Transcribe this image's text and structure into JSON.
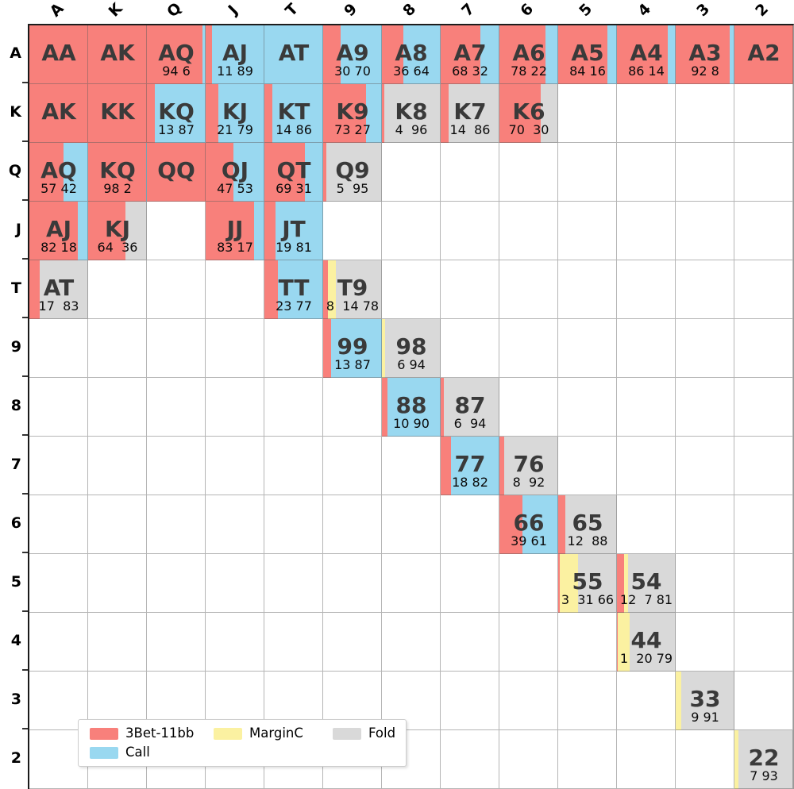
{
  "figure": {
    "kind": "poker-preflop-range-matrix"
  },
  "colors": {
    "threebet": "#f8807b",
    "call": "#99d8f0",
    "margin": "#fbf1a1",
    "fold": "#d9d9d9",
    "empty_cell": "#ffffff",
    "hand_label": "#3a3a3a",
    "grid_line": "#8a8a8a"
  },
  "legend": {
    "items": [
      {
        "key": "threebet",
        "label": "3Bet-11bb"
      },
      {
        "key": "call",
        "label": "Call"
      },
      {
        "key": "margin",
        "label": "MarginC"
      },
      {
        "key": "fold",
        "label": "Fold"
      }
    ]
  },
  "chart_data": {
    "type": "heatmap",
    "title": "",
    "xlabel": "",
    "ylabel": "",
    "row_labels": [
      "A",
      "K",
      "Q",
      "J",
      "T",
      "9",
      "8",
      "7",
      "6",
      "5",
      "4",
      "3",
      "2"
    ],
    "col_labels": [
      "A",
      "K",
      "Q",
      "J",
      "T",
      "9",
      "8",
      "7",
      "6",
      "5",
      "4",
      "3",
      "2"
    ],
    "actions_order": [
      "threebet",
      "call",
      "margin",
      "fold"
    ],
    "cells": [
      {
        "r": 0,
        "c": 0,
        "hand": "AA",
        "nums": "",
        "segs": [
          [
            "threebet",
            100
          ]
        ]
      },
      {
        "r": 0,
        "c": 1,
        "hand": "AK",
        "nums": "",
        "segs": [
          [
            "threebet",
            100
          ]
        ]
      },
      {
        "r": 0,
        "c": 2,
        "hand": "AQ",
        "nums": "94 6",
        "segs": [
          [
            "threebet",
            94
          ],
          [
            "call",
            6
          ]
        ]
      },
      {
        "r": 0,
        "c": 3,
        "hand": "AJ",
        "nums": "11 89",
        "segs": [
          [
            "threebet",
            11
          ],
          [
            "call",
            89
          ]
        ]
      },
      {
        "r": 0,
        "c": 4,
        "hand": "AT",
        "nums": "",
        "segs": [
          [
            "call",
            100
          ]
        ]
      },
      {
        "r": 0,
        "c": 5,
        "hand": "A9",
        "nums": "30 70",
        "segs": [
          [
            "threebet",
            30
          ],
          [
            "call",
            70
          ]
        ]
      },
      {
        "r": 0,
        "c": 6,
        "hand": "A8",
        "nums": "36 64",
        "segs": [
          [
            "threebet",
            36
          ],
          [
            "call",
            64
          ]
        ]
      },
      {
        "r": 0,
        "c": 7,
        "hand": "A7",
        "nums": "68 32",
        "segs": [
          [
            "threebet",
            68
          ],
          [
            "call",
            32
          ]
        ]
      },
      {
        "r": 0,
        "c": 8,
        "hand": "A6",
        "nums": "78 22",
        "segs": [
          [
            "threebet",
            78
          ],
          [
            "call",
            22
          ]
        ]
      },
      {
        "r": 0,
        "c": 9,
        "hand": "A5",
        "nums": "84 16",
        "segs": [
          [
            "threebet",
            84
          ],
          [
            "call",
            16
          ]
        ]
      },
      {
        "r": 0,
        "c": 10,
        "hand": "A4",
        "nums": "86 14",
        "segs": [
          [
            "threebet",
            86
          ],
          [
            "call",
            14
          ]
        ]
      },
      {
        "r": 0,
        "c": 11,
        "hand": "A3",
        "nums": "92 8",
        "segs": [
          [
            "threebet",
            92
          ],
          [
            "call",
            8
          ]
        ]
      },
      {
        "r": 0,
        "c": 12,
        "hand": "A2",
        "nums": "",
        "segs": [
          [
            "threebet",
            100
          ]
        ]
      },
      {
        "r": 1,
        "c": 0,
        "hand": "AK",
        "nums": "",
        "segs": [
          [
            "threebet",
            100
          ]
        ]
      },
      {
        "r": 1,
        "c": 1,
        "hand": "KK",
        "nums": "",
        "segs": [
          [
            "threebet",
            100
          ]
        ]
      },
      {
        "r": 1,
        "c": 2,
        "hand": "KQ",
        "nums": "13 87",
        "segs": [
          [
            "threebet",
            13
          ],
          [
            "call",
            87
          ]
        ]
      },
      {
        "r": 1,
        "c": 3,
        "hand": "KJ",
        "nums": "21 79",
        "segs": [
          [
            "threebet",
            21
          ],
          [
            "call",
            79
          ]
        ]
      },
      {
        "r": 1,
        "c": 4,
        "hand": "KT",
        "nums": "14 86",
        "segs": [
          [
            "threebet",
            14
          ],
          [
            "call",
            86
          ]
        ]
      },
      {
        "r": 1,
        "c": 5,
        "hand": "K9",
        "nums": "73 27",
        "segs": [
          [
            "threebet",
            73
          ],
          [
            "call",
            27
          ]
        ]
      },
      {
        "r": 1,
        "c": 6,
        "hand": "K8",
        "nums": "4  96",
        "segs": [
          [
            "threebet",
            4
          ],
          [
            "fold",
            96
          ]
        ]
      },
      {
        "r": 1,
        "c": 7,
        "hand": "K7",
        "nums": "14  86",
        "segs": [
          [
            "threebet",
            14
          ],
          [
            "fold",
            86
          ]
        ]
      },
      {
        "r": 1,
        "c": 8,
        "hand": "K6",
        "nums": "70  30",
        "segs": [
          [
            "threebet",
            70
          ],
          [
            "fold",
            30
          ]
        ]
      },
      {
        "r": 2,
        "c": 0,
        "hand": "AQ",
        "nums": "57 42",
        "segs": [
          [
            "threebet",
            57
          ],
          [
            "call",
            42
          ]
        ]
      },
      {
        "r": 2,
        "c": 1,
        "hand": "KQ",
        "nums": "98 2",
        "segs": [
          [
            "threebet",
            98
          ],
          [
            "call",
            2
          ]
        ]
      },
      {
        "r": 2,
        "c": 2,
        "hand": "QQ",
        "nums": "",
        "segs": [
          [
            "threebet",
            100
          ]
        ]
      },
      {
        "r": 2,
        "c": 3,
        "hand": "QJ",
        "nums": "47 53",
        "segs": [
          [
            "threebet",
            47
          ],
          [
            "call",
            53
          ]
        ]
      },
      {
        "r": 2,
        "c": 4,
        "hand": "QT",
        "nums": "69 31",
        "segs": [
          [
            "threebet",
            69
          ],
          [
            "call",
            31
          ]
        ]
      },
      {
        "r": 2,
        "c": 5,
        "hand": "Q9",
        "nums": "5  95",
        "segs": [
          [
            "threebet",
            5
          ],
          [
            "fold",
            95
          ]
        ]
      },
      {
        "r": 3,
        "c": 0,
        "hand": "AJ",
        "nums": "82 18",
        "segs": [
          [
            "threebet",
            82
          ],
          [
            "call",
            18
          ]
        ]
      },
      {
        "r": 3,
        "c": 1,
        "hand": "KJ",
        "nums": "64  36",
        "segs": [
          [
            "threebet",
            64
          ],
          [
            "fold",
            36
          ]
        ]
      },
      {
        "r": 3,
        "c": 3,
        "hand": "JJ",
        "nums": "83 17",
        "segs": [
          [
            "threebet",
            83
          ],
          [
            "call",
            17
          ]
        ]
      },
      {
        "r": 3,
        "c": 4,
        "hand": "JT",
        "nums": "19 81",
        "segs": [
          [
            "threebet",
            19
          ],
          [
            "call",
            81
          ]
        ]
      },
      {
        "r": 4,
        "c": 0,
        "hand": "AT",
        "nums": "17  83",
        "segs": [
          [
            "threebet",
            17
          ],
          [
            "fold",
            83
          ]
        ]
      },
      {
        "r": 4,
        "c": 4,
        "hand": "TT",
        "nums": "23 77",
        "segs": [
          [
            "threebet",
            23
          ],
          [
            "call",
            77
          ]
        ]
      },
      {
        "r": 4,
        "c": 5,
        "hand": "T9",
        "nums": "8  14 78",
        "segs": [
          [
            "threebet",
            8
          ],
          [
            "margin",
            14
          ],
          [
            "fold",
            78
          ]
        ]
      },
      {
        "r": 5,
        "c": 5,
        "hand": "99",
        "nums": "13 87",
        "segs": [
          [
            "threebet",
            13
          ],
          [
            "call",
            87
          ]
        ]
      },
      {
        "r": 5,
        "c": 6,
        "hand": "98",
        "nums": "6 94",
        "segs": [
          [
            "margin",
            6
          ],
          [
            "fold",
            94
          ]
        ]
      },
      {
        "r": 6,
        "c": 6,
        "hand": "88",
        "nums": "10 90",
        "segs": [
          [
            "threebet",
            10
          ],
          [
            "call",
            90
          ]
        ]
      },
      {
        "r": 6,
        "c": 7,
        "hand": "87",
        "nums": "6  94",
        "segs": [
          [
            "threebet",
            6
          ],
          [
            "fold",
            94
          ]
        ]
      },
      {
        "r": 7,
        "c": 7,
        "hand": "77",
        "nums": "18 82",
        "segs": [
          [
            "threebet",
            18
          ],
          [
            "call",
            82
          ]
        ]
      },
      {
        "r": 7,
        "c": 8,
        "hand": "76",
        "nums": "8  92",
        "segs": [
          [
            "threebet",
            8
          ],
          [
            "fold",
            92
          ]
        ]
      },
      {
        "r": 8,
        "c": 8,
        "hand": "66",
        "nums": "39 61",
        "segs": [
          [
            "threebet",
            39
          ],
          [
            "call",
            61
          ]
        ]
      },
      {
        "r": 8,
        "c": 9,
        "hand": "65",
        "nums": "12  88",
        "segs": [
          [
            "threebet",
            12
          ],
          [
            "fold",
            88
          ]
        ]
      },
      {
        "r": 9,
        "c": 9,
        "hand": "55",
        "nums": "3  31 66",
        "segs": [
          [
            "threebet",
            3
          ],
          [
            "margin",
            31
          ],
          [
            "fold",
            66
          ]
        ]
      },
      {
        "r": 9,
        "c": 10,
        "hand": "54",
        "nums": "12  7 81",
        "segs": [
          [
            "threebet",
            12
          ],
          [
            "margin",
            7
          ],
          [
            "fold",
            81
          ]
        ]
      },
      {
        "r": 10,
        "c": 10,
        "hand": "44",
        "nums": "1  20 79",
        "segs": [
          [
            "threebet",
            1
          ],
          [
            "margin",
            20
          ],
          [
            "fold",
            79
          ]
        ]
      },
      {
        "r": 11,
        "c": 11,
        "hand": "33",
        "nums": "9 91",
        "segs": [
          [
            "margin",
            9
          ],
          [
            "fold",
            91
          ]
        ]
      },
      {
        "r": 12,
        "c": 12,
        "hand": "22",
        "nums": "7 93",
        "segs": [
          [
            "margin",
            7
          ],
          [
            "fold",
            93
          ]
        ]
      }
    ]
  }
}
